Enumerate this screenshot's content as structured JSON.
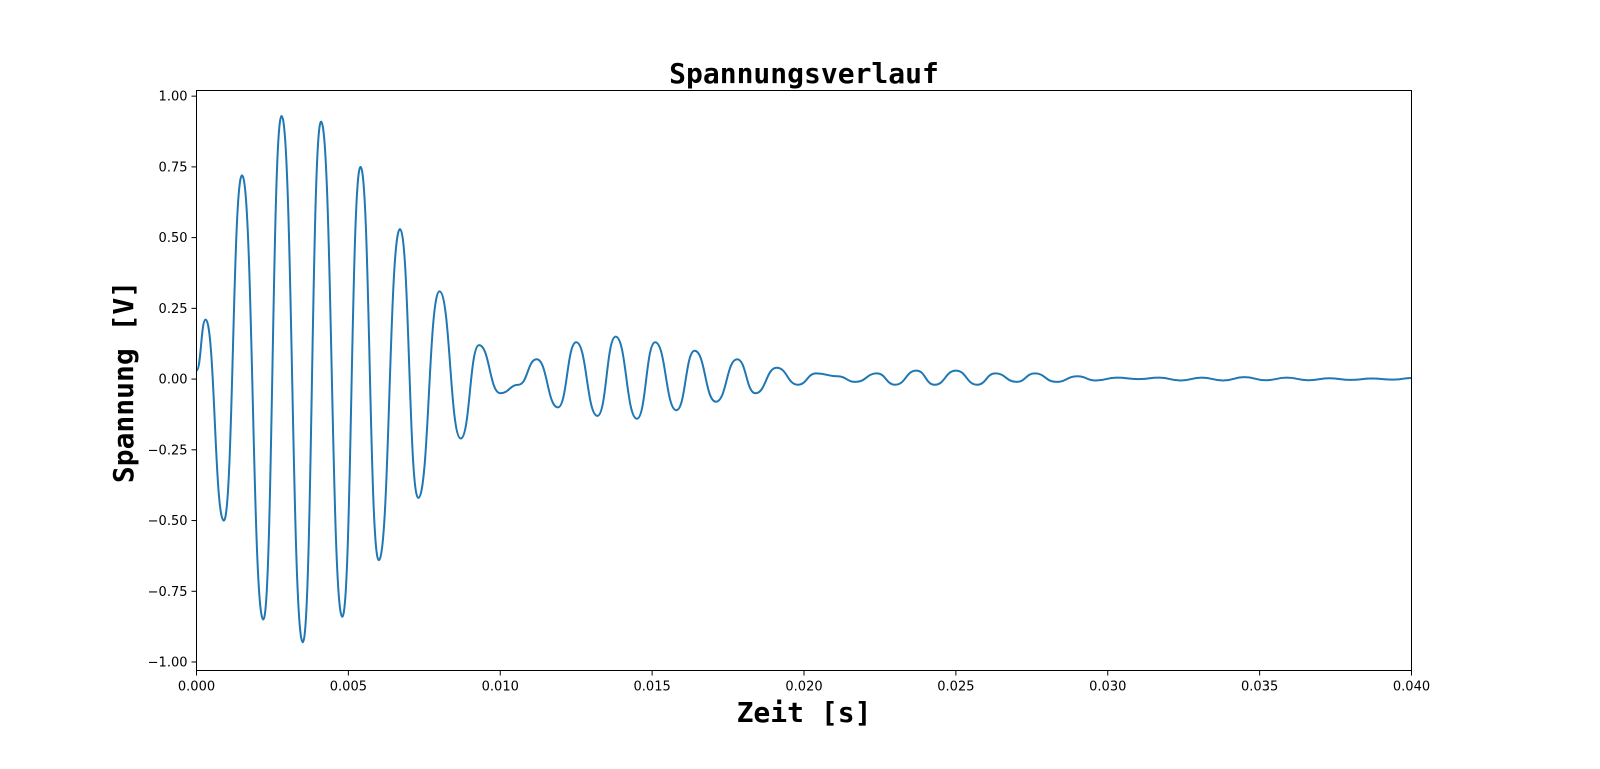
{
  "chart_data": {
    "type": "line",
    "title": "Spannungsverlauf",
    "xlabel": "Zeit [s]",
    "ylabel": "Spannung [V]",
    "xlim": [
      0.0,
      0.04
    ],
    "ylim": [
      -1.03,
      1.02
    ],
    "x_ticks": [
      0.0,
      0.005,
      0.01,
      0.015,
      0.02,
      0.025,
      0.03,
      0.035,
      0.04
    ],
    "x_tick_labels": [
      "0.000",
      "0.005",
      "0.010",
      "0.015",
      "0.020",
      "0.025",
      "0.030",
      "0.035",
      "0.040"
    ],
    "y_ticks": [
      -1.0,
      -0.75,
      -0.5,
      -0.25,
      0.0,
      0.25,
      0.5,
      0.75,
      1.0
    ],
    "y_tick_labels": [
      "−1.00",
      "−0.75",
      "−0.50",
      "−0.25",
      "0.00",
      "0.25",
      "0.50",
      "0.75",
      "1.00"
    ],
    "grid": false,
    "line_color": "#1f77b4",
    "series": [
      {
        "x": [
          0.0,
          0.0003,
          0.0009,
          0.0015,
          0.0022,
          0.0028,
          0.0035,
          0.0041,
          0.0048,
          0.0054,
          0.006,
          0.0067,
          0.0073,
          0.008,
          0.0087,
          0.0093,
          0.01,
          0.0106,
          0.0112,
          0.0119,
          0.0125,
          0.0132,
          0.0138,
          0.0145,
          0.0151,
          0.0158,
          0.0164,
          0.0171,
          0.0178,
          0.0184,
          0.0191,
          0.0198,
          0.0204,
          0.0211,
          0.0217,
          0.0224,
          0.023,
          0.0237,
          0.0243,
          0.025,
          0.0257,
          0.0263,
          0.027,
          0.0276,
          0.0283,
          0.029,
          0.0296,
          0.0303,
          0.031,
          0.0317,
          0.0324,
          0.0331,
          0.0338,
          0.0345,
          0.0352,
          0.0359,
          0.0366,
          0.0373,
          0.038,
          0.0387,
          0.0394,
          0.04
        ],
        "y": [
          0.03,
          0.21,
          -0.5,
          0.72,
          -0.85,
          0.93,
          -0.93,
          0.91,
          -0.84,
          0.75,
          -0.64,
          0.53,
          -0.42,
          0.31,
          -0.21,
          0.12,
          -0.05,
          -0.02,
          0.07,
          -0.1,
          0.13,
          -0.13,
          0.15,
          -0.14,
          0.13,
          -0.11,
          0.1,
          -0.08,
          0.07,
          -0.05,
          0.04,
          -0.02,
          0.02,
          0.01,
          -0.01,
          0.02,
          -0.02,
          0.03,
          -0.02,
          0.03,
          -0.02,
          0.02,
          -0.01,
          0.02,
          -0.01,
          0.01,
          -0.005,
          0.005,
          0.0,
          0.005,
          -0.005,
          0.005,
          -0.005,
          0.007,
          -0.004,
          0.005,
          -0.004,
          0.003,
          -0.003,
          0.002,
          -0.002,
          0.004
        ]
      }
    ]
  }
}
